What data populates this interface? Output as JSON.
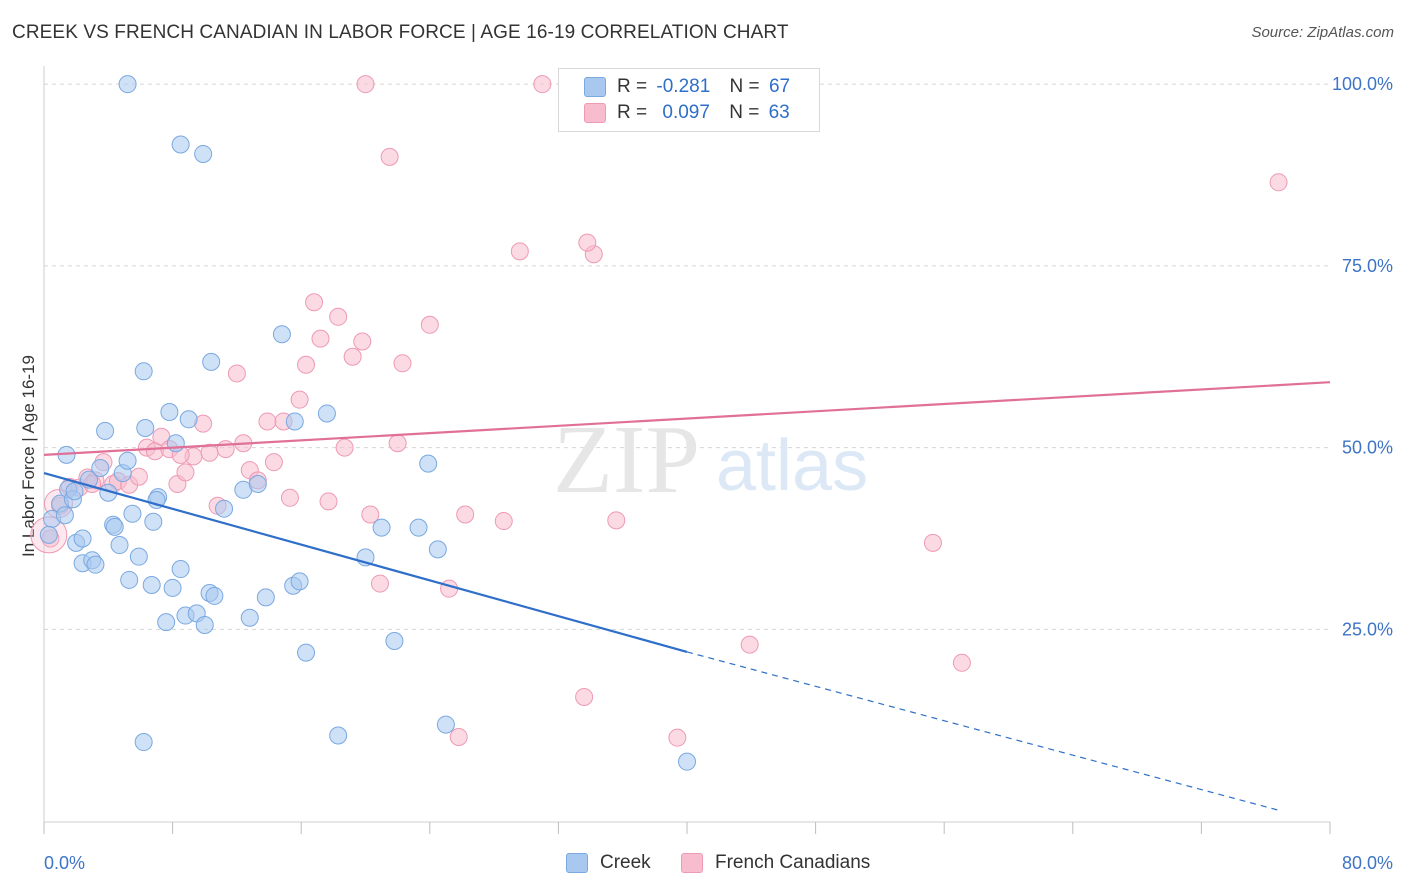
{
  "title": "CREEK VS FRENCH CANADIAN IN LABOR FORCE | AGE 16-19 CORRELATION CHART",
  "source": "Source: ZipAtlas.com",
  "watermark": {
    "zip": "ZIP",
    "atlas": "atlas"
  },
  "legend": {
    "creek": {
      "r_label": "R =",
      "r_value": "-0.281",
      "n_label": "N =",
      "n_value": "67"
    },
    "french": {
      "r_label": "R =",
      "r_value": "0.097",
      "n_label": "N =",
      "n_value": "63"
    }
  },
  "colors": {
    "creek_fill": "#a8c8f0",
    "creek_stroke": "#7aa8e0",
    "creek_line": "#2f6fc9",
    "french_fill": "#f7bccd",
    "french_stroke": "#ee9ab4",
    "french_line": "#e07097",
    "tick_text": "#3d74c6"
  },
  "chart_data": {
    "type": "scatter",
    "title": "CREEK VS FRENCH CANADIAN IN LABOR FORCE | AGE 16-19 CORRELATION CHART",
    "xlabel": "",
    "ylabel": "In Labor Force | Age 16-19",
    "xlim": [
      0,
      80
    ],
    "ylim": [
      -1.5,
      102.5
    ],
    "x_tick_labels": [
      "0.0%",
      "80.0%"
    ],
    "y_tick_labels": [
      "25.0%",
      "50.0%",
      "75.0%",
      "100.0%"
    ],
    "y_tick_values": [
      25,
      50,
      75,
      100
    ],
    "grid": true,
    "legend_position": "top-center",
    "series": [
      {
        "name": "Creek",
        "trend": {
          "x": [
            0,
            40
          ],
          "y": [
            46.5,
            21.9
          ],
          "dashed_to": [
            77,
            0
          ]
        },
        "points": [
          [
            0.5,
            40.2
          ],
          [
            1.0,
            42.3
          ],
          [
            1.3,
            40.7
          ],
          [
            1.5,
            44.3
          ],
          [
            1.8,
            42.9
          ],
          [
            1.4,
            49.0
          ],
          [
            2.0,
            36.9
          ],
          [
            2.4,
            37.5
          ],
          [
            2.4,
            34.1
          ],
          [
            3.0,
            34.5
          ],
          [
            3.2,
            33.9
          ],
          [
            2.8,
            45.6
          ],
          [
            3.8,
            52.3
          ],
          [
            4.0,
            43.8
          ],
          [
            4.3,
            39.4
          ],
          [
            4.4,
            39.1
          ],
          [
            4.7,
            36.6
          ],
          [
            4.9,
            46.5
          ],
          [
            5.2,
            48.2
          ],
          [
            5.3,
            31.8
          ],
          [
            5.5,
            40.9
          ],
          [
            6.2,
            60.5
          ],
          [
            6.3,
            52.7
          ],
          [
            6.8,
            39.8
          ],
          [
            6.7,
            31.1
          ],
          [
            7.1,
            43.2
          ],
          [
            7.0,
            42.8
          ],
          [
            7.6,
            26.0
          ],
          [
            7.8,
            54.9
          ],
          [
            8.0,
            30.7
          ],
          [
            8.2,
            50.6
          ],
          [
            8.5,
            33.3
          ],
          [
            8.8,
            26.9
          ],
          [
            9.0,
            53.9
          ],
          [
            9.5,
            27.2
          ],
          [
            10.0,
            25.6
          ],
          [
            10.3,
            30.0
          ],
          [
            10.6,
            29.6
          ],
          [
            11.2,
            41.6
          ],
          [
            10.4,
            61.8
          ],
          [
            12.4,
            44.2
          ],
          [
            12.8,
            26.6
          ],
          [
            13.3,
            45.0
          ],
          [
            13.8,
            29.4
          ],
          [
            14.8,
            65.6
          ],
          [
            15.5,
            31.0
          ],
          [
            15.9,
            31.6
          ],
          [
            15.6,
            53.6
          ],
          [
            16.3,
            21.8
          ],
          [
            17.6,
            54.7
          ],
          [
            18.3,
            10.4
          ],
          [
            20.0,
            34.9
          ],
          [
            21.0,
            39.0
          ],
          [
            21.8,
            23.4
          ],
          [
            23.3,
            39.0
          ],
          [
            23.9,
            47.8
          ],
          [
            24.5,
            36.0
          ],
          [
            25.0,
            11.9
          ],
          [
            5.2,
            100.0
          ],
          [
            8.5,
            91.7
          ],
          [
            9.9,
            90.4
          ],
          [
            6.2,
            9.5
          ],
          [
            40.0,
            6.8
          ],
          [
            0.3,
            38.0
          ],
          [
            1.9,
            44.0
          ],
          [
            3.5,
            47.2
          ],
          [
            5.9,
            35.0
          ]
        ]
      },
      {
        "name": "French Canadians",
        "trend": {
          "x": [
            0,
            80
          ],
          "y": [
            49.0,
            59.0
          ]
        },
        "points": [
          [
            0.4,
            37.5
          ],
          [
            1.0,
            42.0
          ],
          [
            1.6,
            44.6
          ],
          [
            2.2,
            44.5
          ],
          [
            2.7,
            45.9
          ],
          [
            3.2,
            45.5
          ],
          [
            3.7,
            48.0
          ],
          [
            4.3,
            45.0
          ],
          [
            4.6,
            45.4
          ],
          [
            5.3,
            44.9
          ],
          [
            5.9,
            46.0
          ],
          [
            6.4,
            50.0
          ],
          [
            6.9,
            49.5
          ],
          [
            7.3,
            51.5
          ],
          [
            7.8,
            49.8
          ],
          [
            8.3,
            45.0
          ],
          [
            8.8,
            46.6
          ],
          [
            9.3,
            48.8
          ],
          [
            9.9,
            53.3
          ],
          [
            10.3,
            49.3
          ],
          [
            10.8,
            42.0
          ],
          [
            11.3,
            49.8
          ],
          [
            12.0,
            60.2
          ],
          [
            12.4,
            50.6
          ],
          [
            12.8,
            46.9
          ],
          [
            13.3,
            45.5
          ],
          [
            13.9,
            53.6
          ],
          [
            14.3,
            48.0
          ],
          [
            14.9,
            53.6
          ],
          [
            15.3,
            43.1
          ],
          [
            15.9,
            56.6
          ],
          [
            16.3,
            61.4
          ],
          [
            16.8,
            70.0
          ],
          [
            17.2,
            65.0
          ],
          [
            17.7,
            42.6
          ],
          [
            18.3,
            68.0
          ],
          [
            18.7,
            50.0
          ],
          [
            19.2,
            62.5
          ],
          [
            19.8,
            64.6
          ],
          [
            20.3,
            40.8
          ],
          [
            20.9,
            31.3
          ],
          [
            21.5,
            90.0
          ],
          [
            22.0,
            50.6
          ],
          [
            22.3,
            61.6
          ],
          [
            24.0,
            66.9
          ],
          [
            25.2,
            30.6
          ],
          [
            25.8,
            10.2
          ],
          [
            26.2,
            40.8
          ],
          [
            28.6,
            39.9
          ],
          [
            29.6,
            77.0
          ],
          [
            33.6,
            15.7
          ],
          [
            34.2,
            76.6
          ],
          [
            35.6,
            40.0
          ],
          [
            39.4,
            10.1
          ],
          [
            43.9,
            22.9
          ],
          [
            55.3,
            36.9
          ],
          [
            57.1,
            20.4
          ],
          [
            76.8,
            86.5
          ],
          [
            20.0,
            100.0
          ],
          [
            31.0,
            100.0
          ],
          [
            33.8,
            78.2
          ],
          [
            8.5,
            49.0
          ],
          [
            3.0,
            45.0
          ]
        ]
      }
    ]
  }
}
